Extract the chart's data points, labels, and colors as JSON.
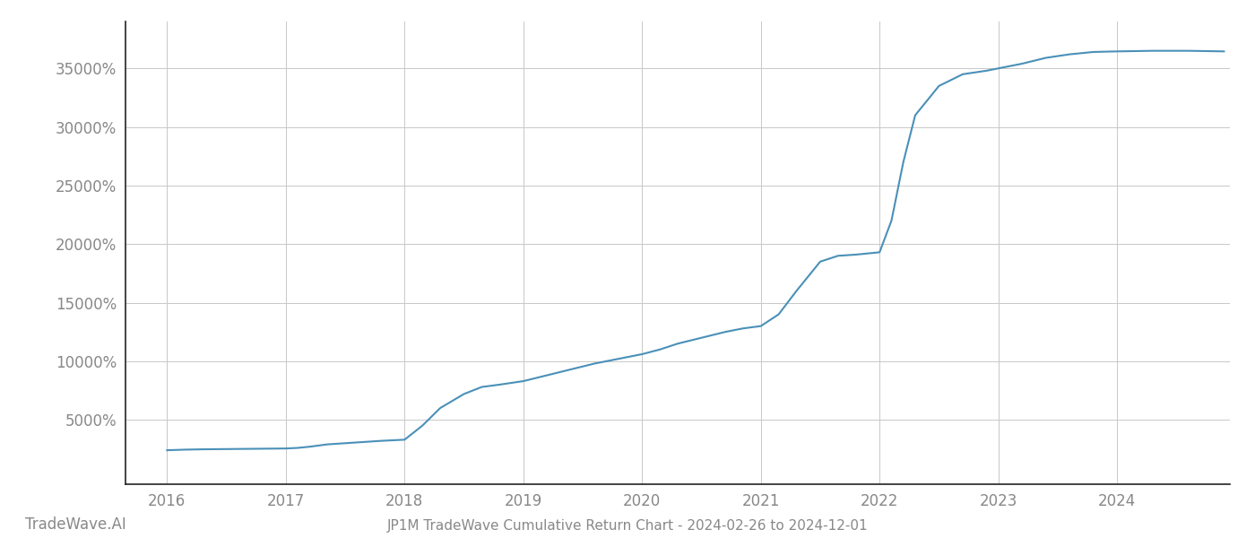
{
  "title": "JP1M TradeWave Cumulative Return Chart - 2024-02-26 to 2024-12-01",
  "watermark": "TradeWave.AI",
  "line_color": "#4a90b8",
  "background_color": "#ffffff",
  "grid_color": "#c8c8c8",
  "x_values": [
    2016.0,
    2016.15,
    2016.3,
    2016.5,
    2016.7,
    2016.9,
    2017.0,
    2017.1,
    2017.2,
    2017.35,
    2017.5,
    2017.65,
    2017.8,
    2017.9,
    2018.0,
    2018.15,
    2018.3,
    2018.5,
    2018.65,
    2018.8,
    2019.0,
    2019.2,
    2019.4,
    2019.6,
    2019.8,
    2020.0,
    2020.15,
    2020.3,
    2020.5,
    2020.7,
    2020.85,
    2021.0,
    2021.15,
    2021.3,
    2021.5,
    2021.65,
    2021.8,
    2021.9,
    2022.0,
    2022.1,
    2022.2,
    2022.3,
    2022.5,
    2022.7,
    2022.9,
    2023.0,
    2023.2,
    2023.4,
    2023.6,
    2023.8,
    2024.0,
    2024.3,
    2024.6,
    2024.9
  ],
  "y_values": [
    2400,
    2450,
    2480,
    2500,
    2520,
    2540,
    2550,
    2600,
    2700,
    2900,
    3000,
    3100,
    3200,
    3250,
    3300,
    4500,
    6000,
    7200,
    7800,
    8000,
    8300,
    8800,
    9300,
    9800,
    10200,
    10600,
    11000,
    11500,
    12000,
    12500,
    12800,
    13000,
    14000,
    16000,
    18500,
    19000,
    19100,
    19200,
    19300,
    22000,
    27000,
    31000,
    33500,
    34500,
    34800,
    35000,
    35400,
    35900,
    36200,
    36400,
    36450,
    36500,
    36500,
    36450
  ],
  "yticks": [
    5000,
    10000,
    15000,
    20000,
    25000,
    30000,
    35000
  ],
  "xticks": [
    2016,
    2017,
    2018,
    2019,
    2020,
    2021,
    2022,
    2023,
    2024
  ],
  "ylim": [
    -500,
    39000
  ],
  "xlim": [
    2015.65,
    2024.95
  ],
  "tick_color": "#888888",
  "spine_color": "#222222",
  "tick_fontsize": 12,
  "title_fontsize": 11,
  "watermark_fontsize": 12,
  "line_width": 1.5
}
